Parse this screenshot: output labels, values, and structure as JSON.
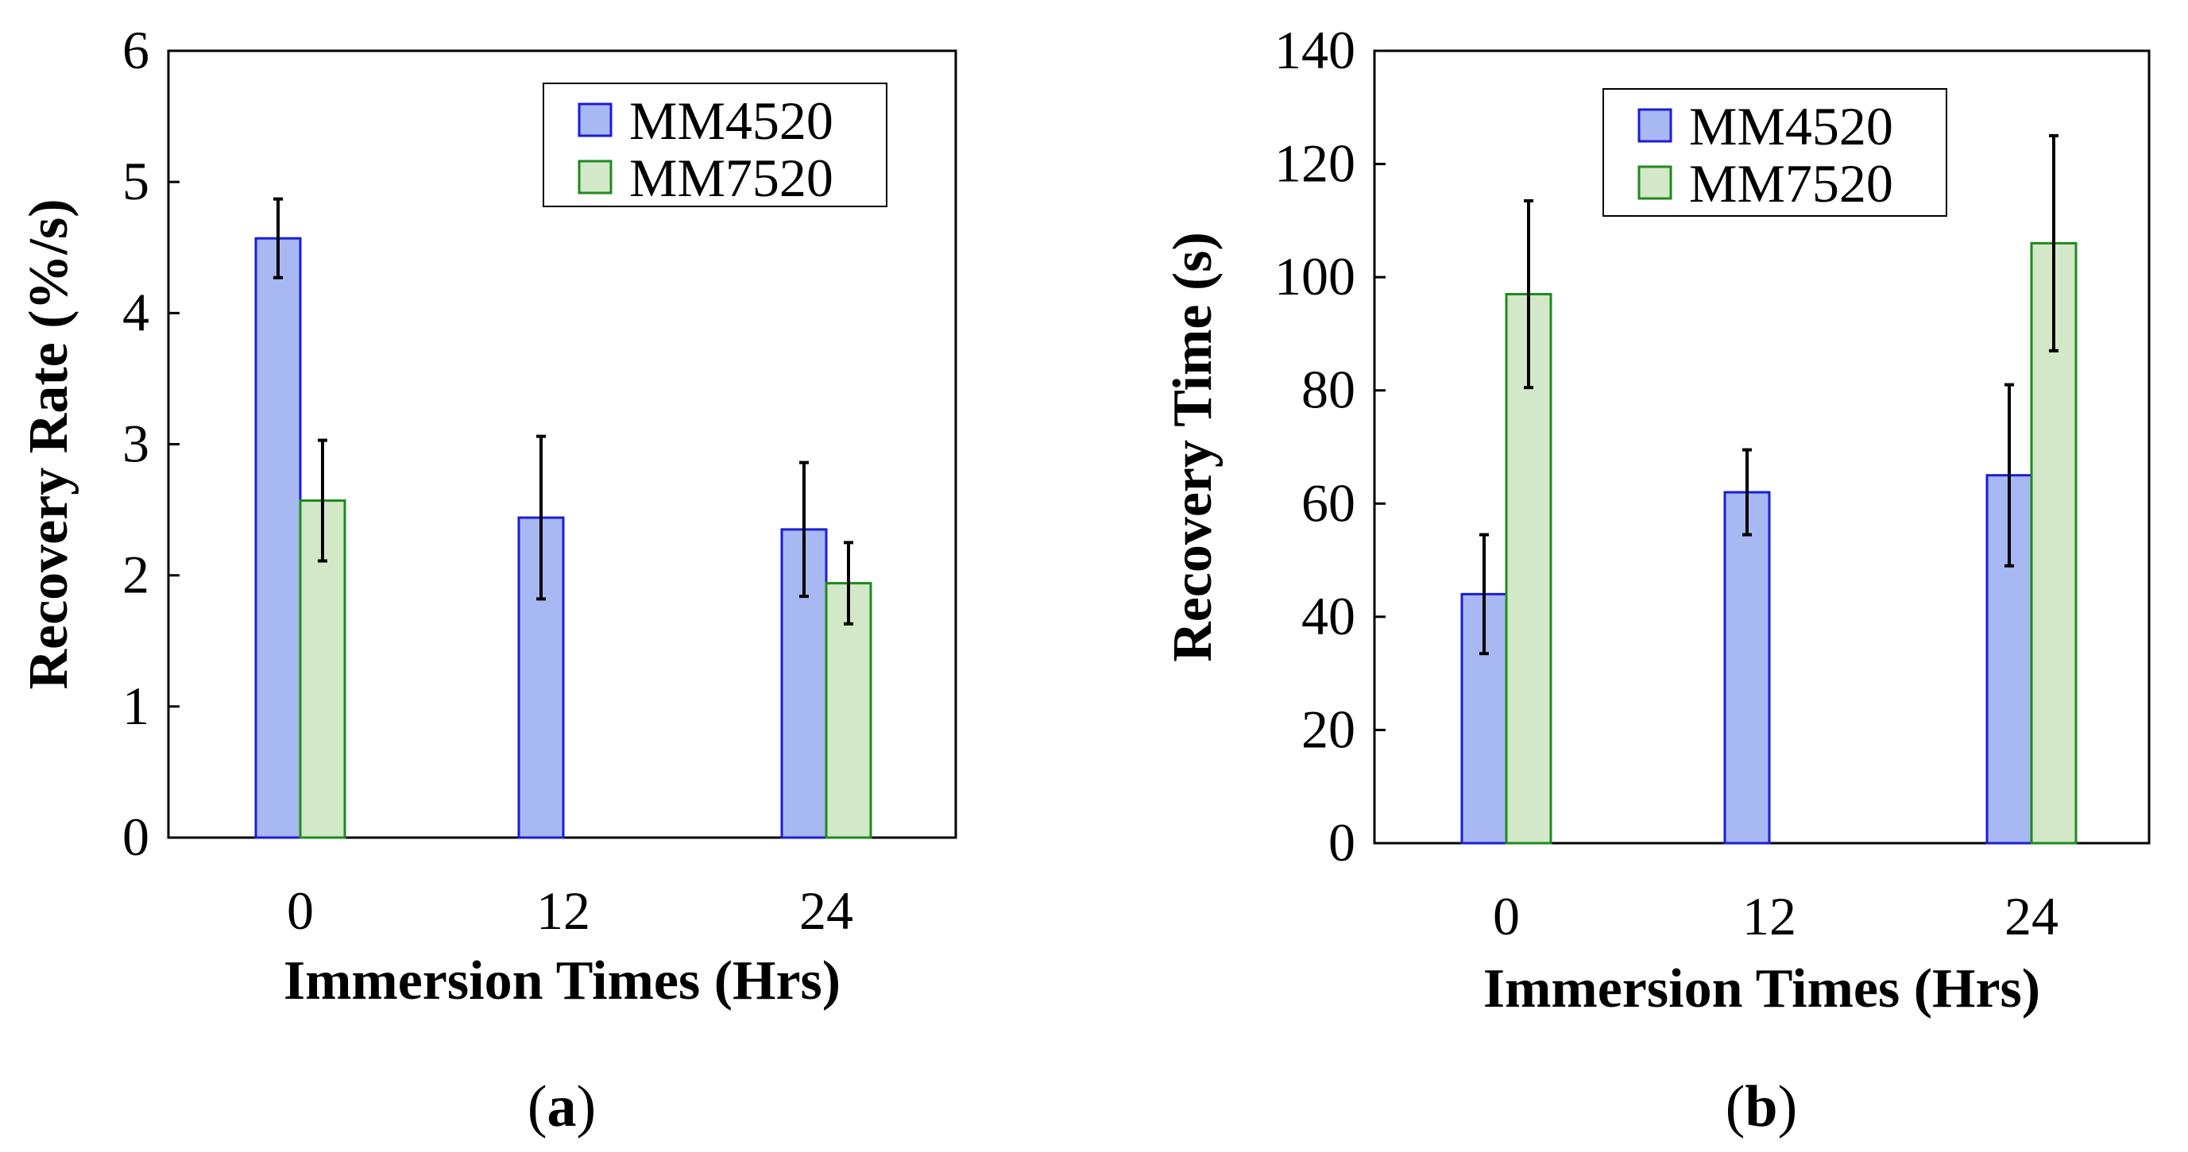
{
  "colors": {
    "mm4520_fill": "#a7b8f2",
    "mm4520_stroke": "#1c1cd6",
    "mm7520_fill": "#d3e8c8",
    "mm7520_stroke": "#1e8a1e",
    "axis": "#000000",
    "error_bar": "#000000"
  },
  "chart_data": [
    {
      "type": "bar",
      "panel_label": {
        "open": "(",
        "letter": "a",
        "close": ")"
      },
      "categories": [
        "0",
        "12",
        "24"
      ],
      "xlabel": "Immersion Times (Hrs)",
      "ylabel": "Recovery Rate (%/s)",
      "ylim": [
        0,
        6
      ],
      "yticks": [
        0,
        1,
        2,
        3,
        4,
        5,
        6
      ],
      "legend_position": "top-right",
      "series": [
        {
          "name": "MM4520",
          "values": [
            4.57,
            2.44,
            2.35
          ],
          "errors": [
            0.3,
            0.62,
            0.51
          ]
        },
        {
          "name": "MM7520",
          "values": [
            2.57,
            null,
            1.94
          ],
          "errors": [
            0.46,
            null,
            0.31
          ]
        }
      ]
    },
    {
      "type": "bar",
      "panel_label": {
        "open": "(",
        "letter": "b",
        "close": ")"
      },
      "categories": [
        "0",
        "12",
        "24"
      ],
      "xlabel": "Immersion Times (Hrs)",
      "ylabel": "Recovery Time (s)",
      "ylim": [
        0,
        140
      ],
      "yticks": [
        0,
        20,
        40,
        60,
        80,
        100,
        120,
        140
      ],
      "legend_position": "top-right",
      "series": [
        {
          "name": "MM4520",
          "values": [
            44,
            62,
            65
          ],
          "errors": [
            10.5,
            7.5,
            16
          ]
        },
        {
          "name": "MM7520",
          "values": [
            97,
            null,
            106
          ],
          "errors": [
            16.5,
            null,
            19
          ]
        }
      ]
    }
  ]
}
